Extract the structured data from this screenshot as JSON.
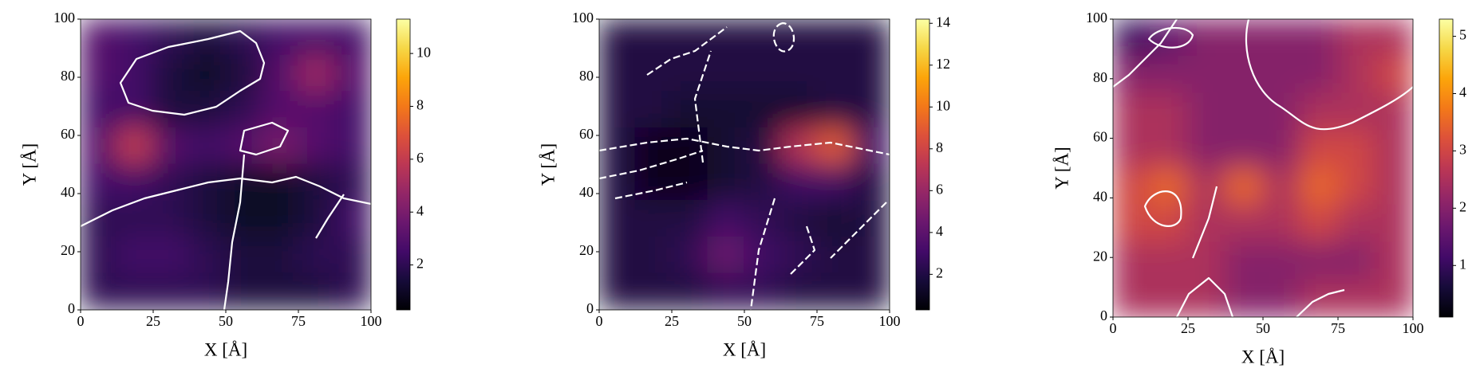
{
  "chart_data": [
    {
      "type": "heatmap",
      "xlabel": "X [Å]",
      "ylabel": "Y [Å]",
      "colormap": "inferno",
      "xlim": [
        0,
        100
      ],
      "ylim": [
        0,
        100
      ],
      "xticks": [
        0,
        25,
        50,
        75,
        100
      ],
      "yticks": [
        0,
        20,
        40,
        60,
        80,
        100
      ],
      "clim": [
        0.3,
        11.3
      ],
      "cticks": [
        2,
        4,
        6,
        8,
        10
      ],
      "z": [
        [
          3,
          2.5,
          2,
          1.5,
          2,
          2.5,
          2.5,
          2.5
        ],
        [
          3,
          2.5,
          1.5,
          1,
          1.5,
          3,
          5,
          3
        ],
        [
          2.5,
          2.5,
          1.5,
          1.5,
          2,
          3,
          3,
          2.5
        ],
        [
          3,
          6,
          3,
          2.5,
          3,
          4,
          3,
          2.5
        ],
        [
          2.5,
          2.5,
          2,
          1.5,
          1,
          1,
          1.5,
          2
        ],
        [
          2,
          2,
          2,
          1.5,
          1,
          1,
          1.5,
          2.5
        ],
        [
          2,
          2.5,
          2.5,
          2,
          1.5,
          1.5,
          2,
          2
        ],
        [
          2,
          2,
          2,
          2,
          1.5,
          1.5,
          1.5,
          2
        ]
      ]
    },
    {
      "type": "heatmap",
      "xlabel": "X [Å]",
      "ylabel": "Y [Å]",
      "colormap": "inferno",
      "xlim": [
        0,
        100
      ],
      "ylim": [
        0,
        100
      ],
      "xticks": [
        0,
        25,
        50,
        75,
        100
      ],
      "yticks": [
        0,
        20,
        40,
        60,
        80,
        100
      ],
      "clim": [
        0.3,
        14.2
      ],
      "cticks": [
        2,
        4,
        6,
        8,
        10,
        12,
        14
      ],
      "z": [
        [
          2,
          2,
          2,
          2,
          2,
          2,
          2,
          2
        ],
        [
          2,
          2,
          2,
          2,
          2,
          2,
          2,
          2
        ],
        [
          2,
          2,
          1.5,
          1.5,
          1.5,
          1.5,
          2,
          2
        ],
        [
          2,
          1,
          1,
          1.5,
          2,
          7,
          9,
          3
        ],
        [
          2,
          1,
          1,
          1.5,
          2,
          3,
          3,
          2
        ],
        [
          2,
          2,
          2,
          3,
          2.5,
          2,
          1.5,
          2
        ],
        [
          2,
          2,
          2.5,
          4.5,
          3,
          2.5,
          2,
          2
        ],
        [
          2,
          2,
          2,
          2.5,
          2.5,
          2,
          2,
          2
        ]
      ]
    },
    {
      "type": "heatmap",
      "xlabel": "X [Å]",
      "ylabel": "Y [Å]",
      "colormap": "inferno",
      "xlim": [
        0,
        100
      ],
      "ylim": [
        0,
        100
      ],
      "xticks": [
        0,
        25,
        50,
        75,
        100
      ],
      "yticks": [
        0,
        20,
        40,
        60,
        80,
        100
      ],
      "clim": [
        0.1,
        5.3
      ],
      "cticks": [
        1,
        2,
        3,
        4,
        5
      ],
      "z": [
        [
          1,
          1.5,
          2,
          2,
          2,
          2,
          2.5,
          2.5
        ],
        [
          2,
          2,
          2,
          2,
          2,
          2,
          2.5,
          3
        ],
        [
          2.5,
          2.5,
          2,
          2,
          2,
          2.5,
          2.5,
          2.5
        ],
        [
          2.5,
          2.5,
          2,
          2,
          2,
          3,
          3,
          2.5
        ],
        [
          3,
          3.5,
          2.5,
          3.5,
          2.5,
          3.5,
          3,
          2.5
        ],
        [
          3,
          3,
          2.5,
          2.5,
          2.5,
          3,
          2.5,
          2.5
        ],
        [
          2.5,
          2.5,
          2.5,
          2,
          2,
          2,
          2,
          2.5
        ],
        [
          2.5,
          2.5,
          2.5,
          2,
          2,
          2.5,
          2.5,
          2.5
        ]
      ]
    }
  ]
}
